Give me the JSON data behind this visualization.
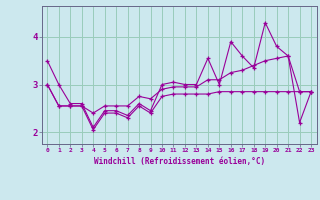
{
  "xlabel": "Windchill (Refroidissement éolien,°C)",
  "background_color": "#cce8ee",
  "grid_color": "#99ccbb",
  "line_color": "#990099",
  "spine_color": "#666688",
  "x": [
    0,
    1,
    2,
    3,
    4,
    5,
    6,
    7,
    8,
    9,
    10,
    11,
    12,
    13,
    14,
    15,
    16,
    17,
    18,
    19,
    20,
    21,
    22,
    23
  ],
  "y_main": [
    3.5,
    3.0,
    2.6,
    2.6,
    2.1,
    2.45,
    2.45,
    2.35,
    2.6,
    2.45,
    3.0,
    3.05,
    3.0,
    3.0,
    3.55,
    3.0,
    3.9,
    3.6,
    3.35,
    4.3,
    3.8,
    3.6,
    2.2,
    2.85
  ],
  "y_low": [
    3.0,
    2.55,
    2.55,
    2.55,
    2.05,
    2.4,
    2.4,
    2.3,
    2.55,
    2.4,
    2.75,
    2.8,
    2.8,
    2.8,
    2.8,
    2.85,
    2.85,
    2.85,
    2.85,
    2.85,
    2.85,
    2.85,
    2.85,
    2.85
  ],
  "y_high": [
    3.0,
    2.55,
    2.55,
    2.55,
    2.4,
    2.55,
    2.55,
    2.55,
    2.75,
    2.7,
    2.9,
    2.95,
    2.95,
    2.95,
    3.1,
    3.1,
    3.25,
    3.3,
    3.4,
    3.5,
    3.55,
    3.6,
    2.85,
    2.85
  ],
  "ylim": [
    1.75,
    4.65
  ],
  "yticks": [
    2,
    3,
    4
  ],
  "xticks": [
    0,
    1,
    2,
    3,
    4,
    5,
    6,
    7,
    8,
    9,
    10,
    11,
    12,
    13,
    14,
    15,
    16,
    17,
    18,
    19,
    20,
    21,
    22,
    23
  ]
}
